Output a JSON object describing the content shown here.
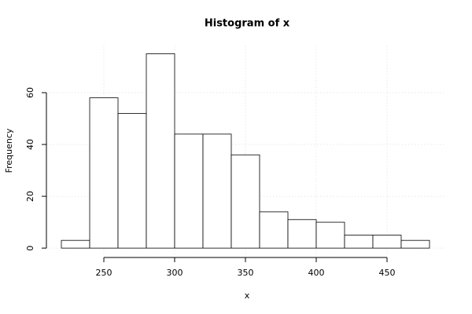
{
  "chart_data": {
    "type": "histogram",
    "title": "Histogram of x",
    "x_label": "x",
    "y_label": "Frequency",
    "bins": [
      220,
      240,
      260,
      280,
      300,
      320,
      340,
      360,
      380,
      400,
      420,
      440,
      460,
      480
    ],
    "counts": [
      3,
      58,
      52,
      75,
      44,
      44,
      36,
      14,
      11,
      10,
      5,
      5,
      3
    ],
    "color": "#ffffff",
    "xlim": [
      209.6,
      490.4
    ],
    "ylim": [
      -3,
      78
    ],
    "xticks": [
      250,
      300,
      350,
      400,
      450
    ],
    "yticks": [
      0,
      20,
      40,
      60
    ],
    "grid": true
  }
}
